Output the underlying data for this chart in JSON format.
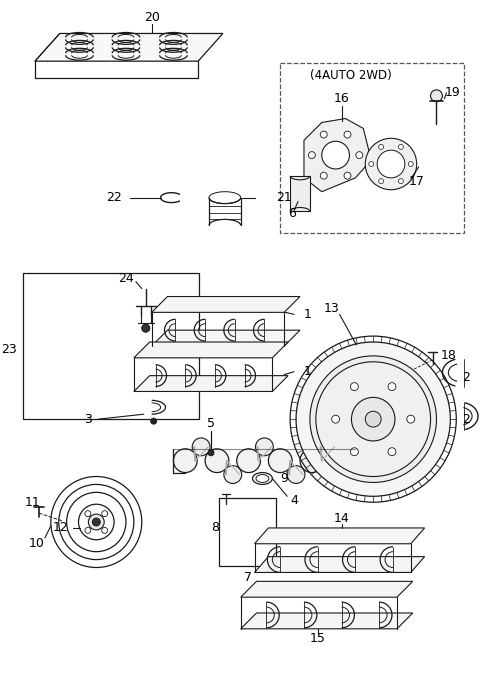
{
  "bg_color": "#ffffff",
  "lc": "#1a1a1a",
  "tc": "#000000",
  "fig_w": 4.8,
  "fig_h": 6.88,
  "dpi": 100
}
